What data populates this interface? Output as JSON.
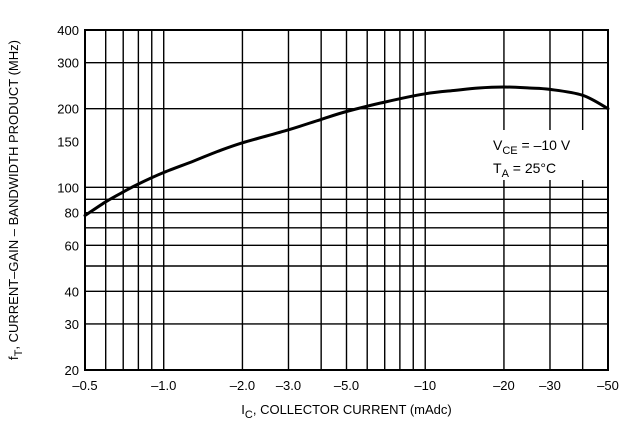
{
  "chart_data": {
    "type": "line",
    "x_scale": "log",
    "y_scale": "log",
    "xlim": [
      -0.5,
      -50
    ],
    "ylim": [
      20,
      400
    ],
    "grid": true,
    "xlabel": {
      "main": "I",
      "sub": "C",
      "rest": ", COLLECTOR CURRENT (mAdc)"
    },
    "ylabel": {
      "main": "f",
      "sub": "T",
      "rest": ", CURRENT–GAIN – BANDWIDTH PRODUCT (MHz)"
    },
    "x_ticks": [
      {
        "value": -0.5,
        "label": "–0.5"
      },
      {
        "value": -1.0,
        "label": "–1.0"
      },
      {
        "value": -2.0,
        "label": "–2.0"
      },
      {
        "value": -3.0,
        "label": "–3.0"
      },
      {
        "value": -5.0,
        "label": "–5.0"
      },
      {
        "value": -10,
        "label": "–10"
      },
      {
        "value": -20,
        "label": "–20"
      },
      {
        "value": -30,
        "label": "–30"
      },
      {
        "value": -50,
        "label": "–50"
      }
    ],
    "y_ticks": [
      {
        "value": 20,
        "label": "20"
      },
      {
        "value": 30,
        "label": "30"
      },
      {
        "value": 40,
        "label": "40"
      },
      {
        "value": 60,
        "label": "60"
      },
      {
        "value": 80,
        "label": "80"
      },
      {
        "value": 100,
        "label": "100"
      },
      {
        "value": 150,
        "label": "150"
      },
      {
        "value": 200,
        "label": "200"
      },
      {
        "value": 300,
        "label": "300"
      },
      {
        "value": 400,
        "label": "400"
      }
    ],
    "x_gridlines": [
      -0.5,
      -0.6,
      -0.7,
      -0.8,
      -0.9,
      -1.0,
      -2.0,
      -3.0,
      -4.0,
      -5.0,
      -6.0,
      -7.0,
      -8.0,
      -9.0,
      -10,
      -20,
      -30,
      -40,
      -50
    ],
    "y_gridlines": [
      20,
      30,
      40,
      50,
      60,
      70,
      80,
      90,
      100,
      200,
      300,
      400
    ],
    "series": [
      {
        "x": [
          -0.5,
          -0.6,
          -0.7,
          -0.8,
          -1.0,
          -1.3,
          -1.6,
          -2.0,
          -3.0,
          -4.0,
          -5.0,
          -7.0,
          -10,
          -13,
          -16,
          -20,
          -25,
          -30,
          -40,
          -50
        ],
        "y": [
          78,
          88,
          96,
          103,
          114,
          126,
          137,
          148,
          166,
          182,
          195,
          212,
          228,
          235,
          240,
          242,
          240,
          237,
          225,
          200
        ]
      }
    ],
    "annotations": [
      {
        "main": "V",
        "sub": "CE",
        "rest": " = –10 V"
      },
      {
        "main": "T",
        "sub": "A",
        "rest": " = 25°C"
      }
    ]
  }
}
